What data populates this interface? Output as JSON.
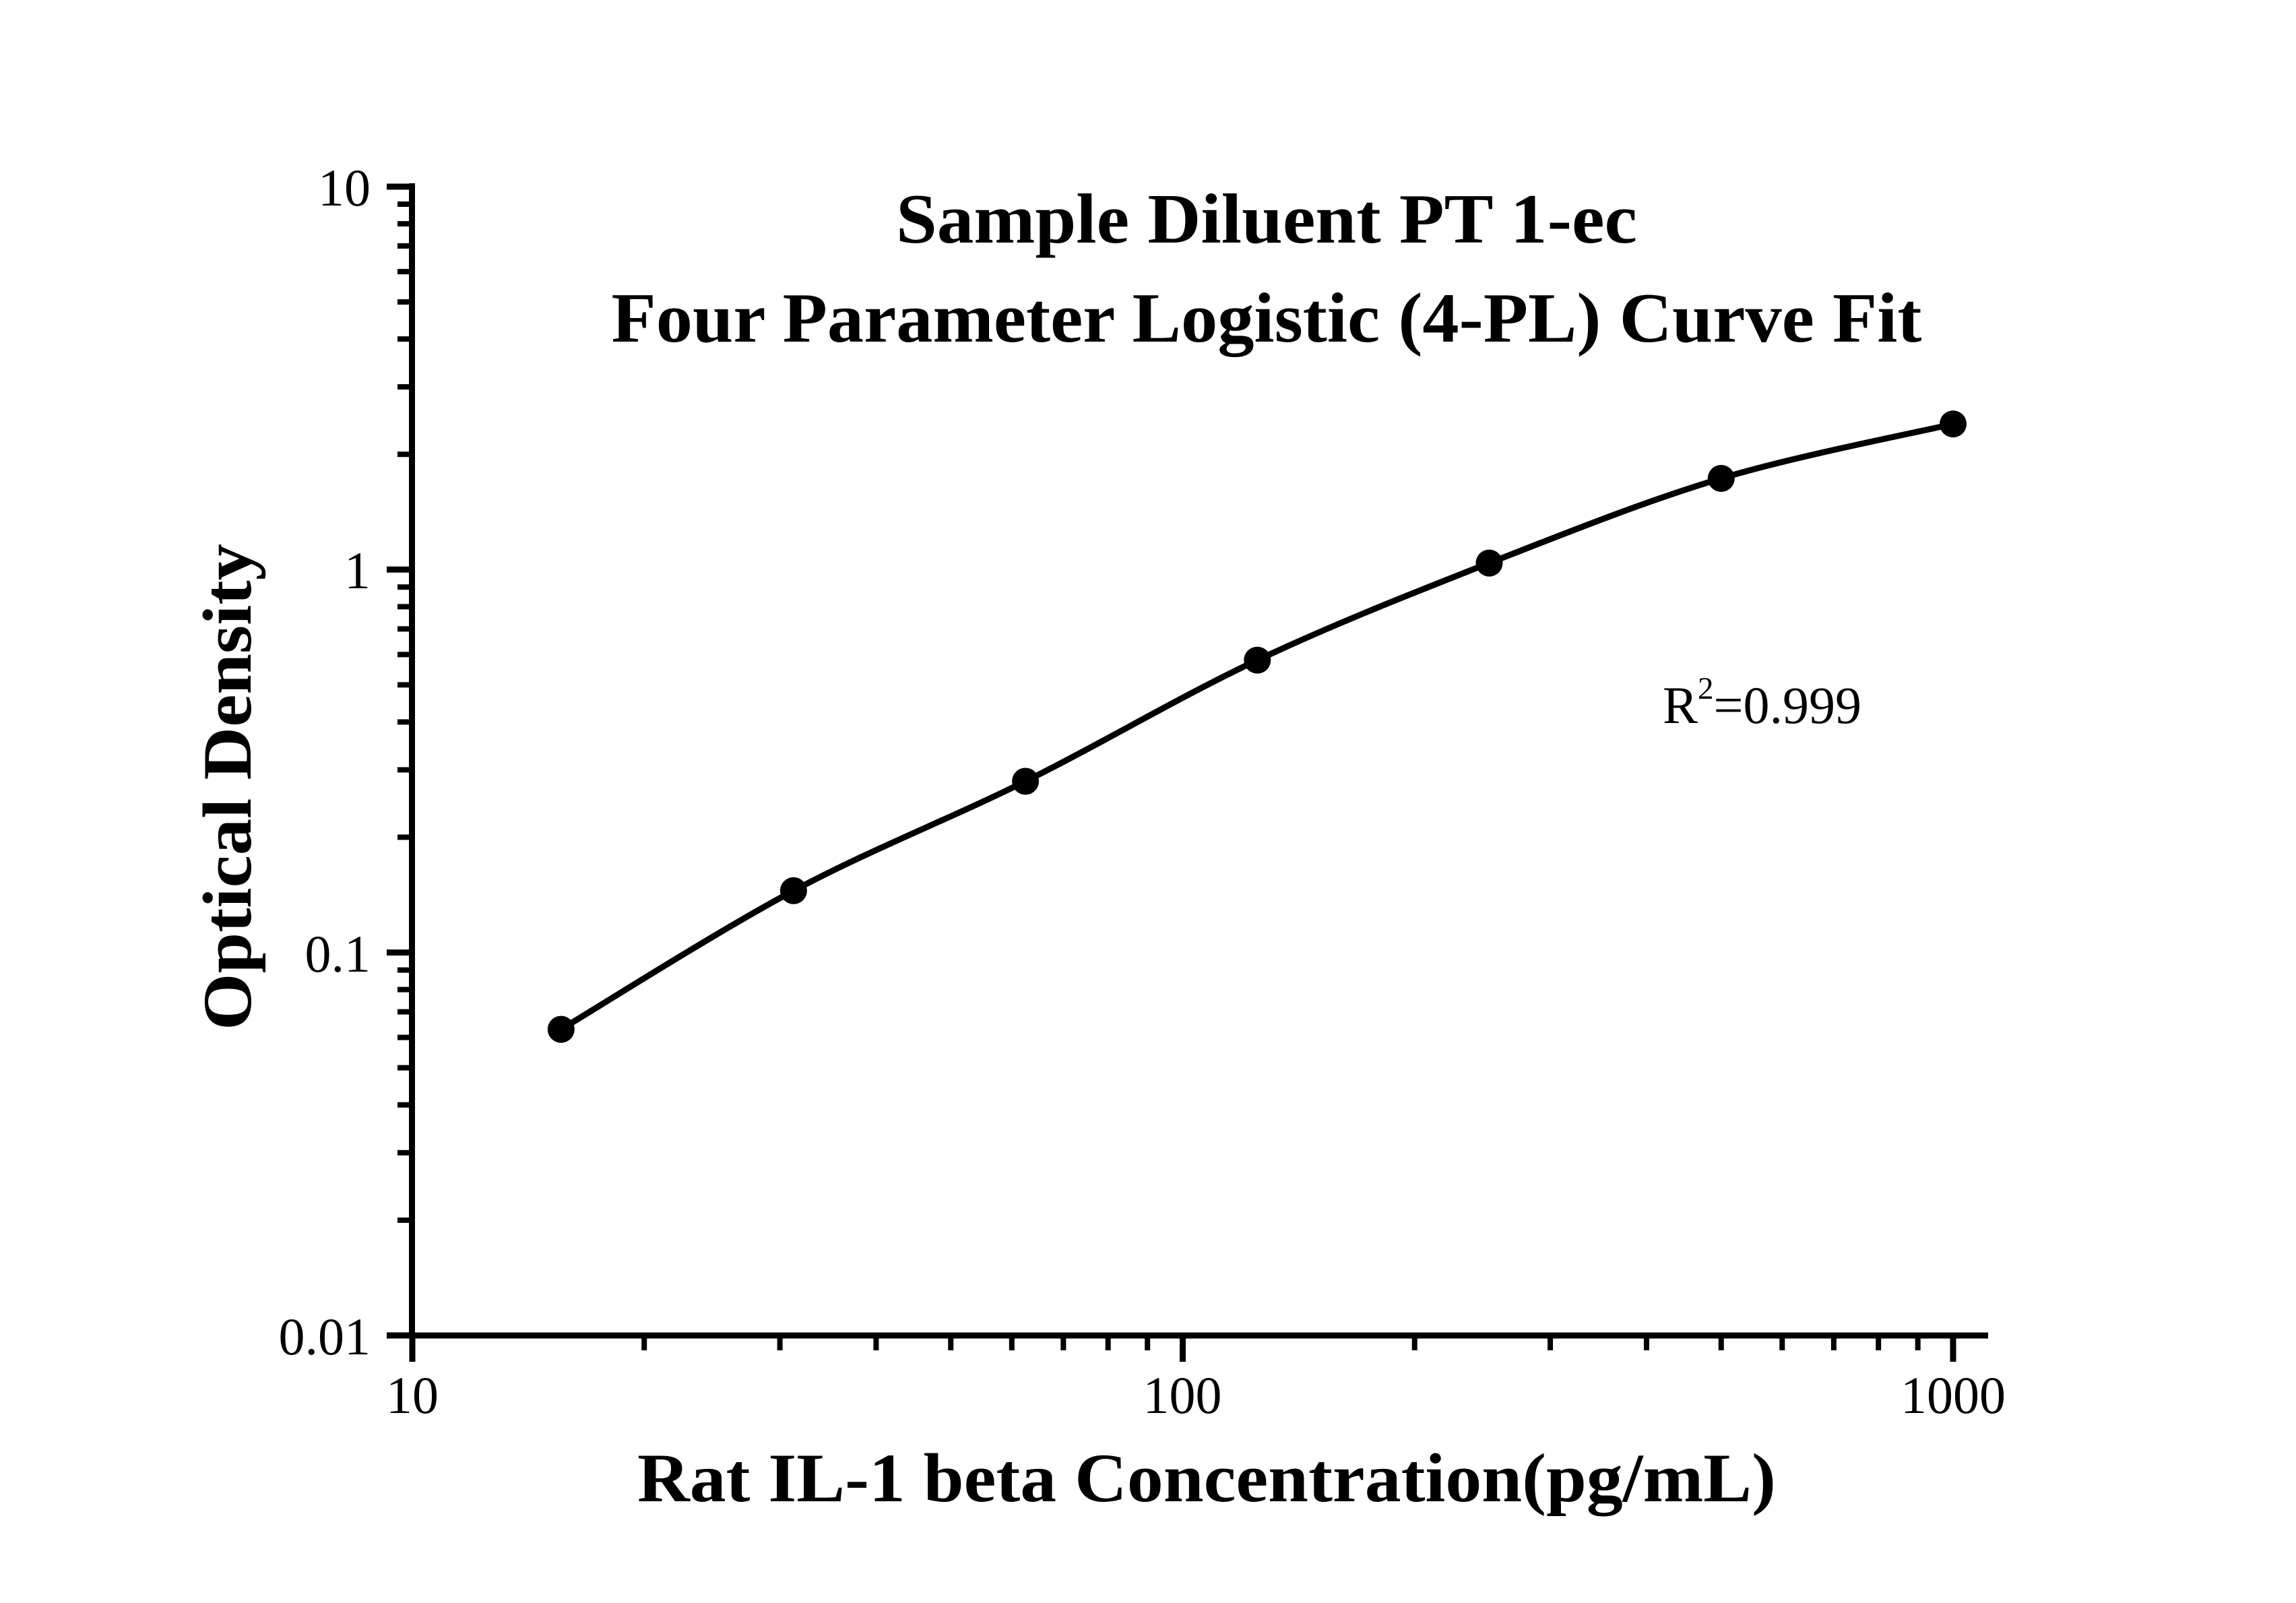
{
  "figure": {
    "background_color": "#ffffff",
    "ink_color": "#000000"
  },
  "chart_data": {
    "type": "line",
    "title_lines": [
      "Sample Diluent PT 1-ec",
      "Four Parameter Logistic (4-PL) Curve Fit"
    ],
    "xlabel": "Rat IL-1 beta Concentration(pg/mL)",
    "ylabel": "Optical Density",
    "x_scale": "log",
    "y_scale": "log",
    "xlim": [
      10,
      1000
    ],
    "ylim": [
      0.01,
      10
    ],
    "grid": "off",
    "legend": "none",
    "x_ticks": [
      10,
      100,
      1000
    ],
    "x_tick_labels": [
      "10",
      "100",
      "1000"
    ],
    "x_minor_ticks": [
      20,
      30,
      40,
      50,
      60,
      70,
      80,
      90,
      200,
      300,
      400,
      500,
      600,
      700,
      800,
      900
    ],
    "y_ticks": [
      10,
      1,
      0.1,
      0.01
    ],
    "y_tick_labels": [
      "10",
      "1",
      "0.1",
      "0.01"
    ],
    "y_minor_ticks": [
      9,
      8,
      7,
      6,
      5,
      4,
      3,
      2,
      0.9,
      0.8,
      0.7,
      0.6,
      0.5,
      0.4,
      0.3,
      0.2,
      0.09,
      0.08,
      0.07,
      0.06,
      0.05,
      0.04,
      0.03,
      0.02
    ],
    "annotation": {
      "base": "R",
      "exponent": "2",
      "value": "=0.999"
    },
    "series": [
      {
        "name": "standard-curve",
        "marker": "filled-circle",
        "line": "4pl-fit",
        "x": [
          15.6,
          31.25,
          62.5,
          125,
          250,
          500,
          1000
        ],
        "y": [
          0.063,
          0.145,
          0.28,
          0.58,
          1.04,
          1.73,
          2.4
        ]
      }
    ]
  }
}
